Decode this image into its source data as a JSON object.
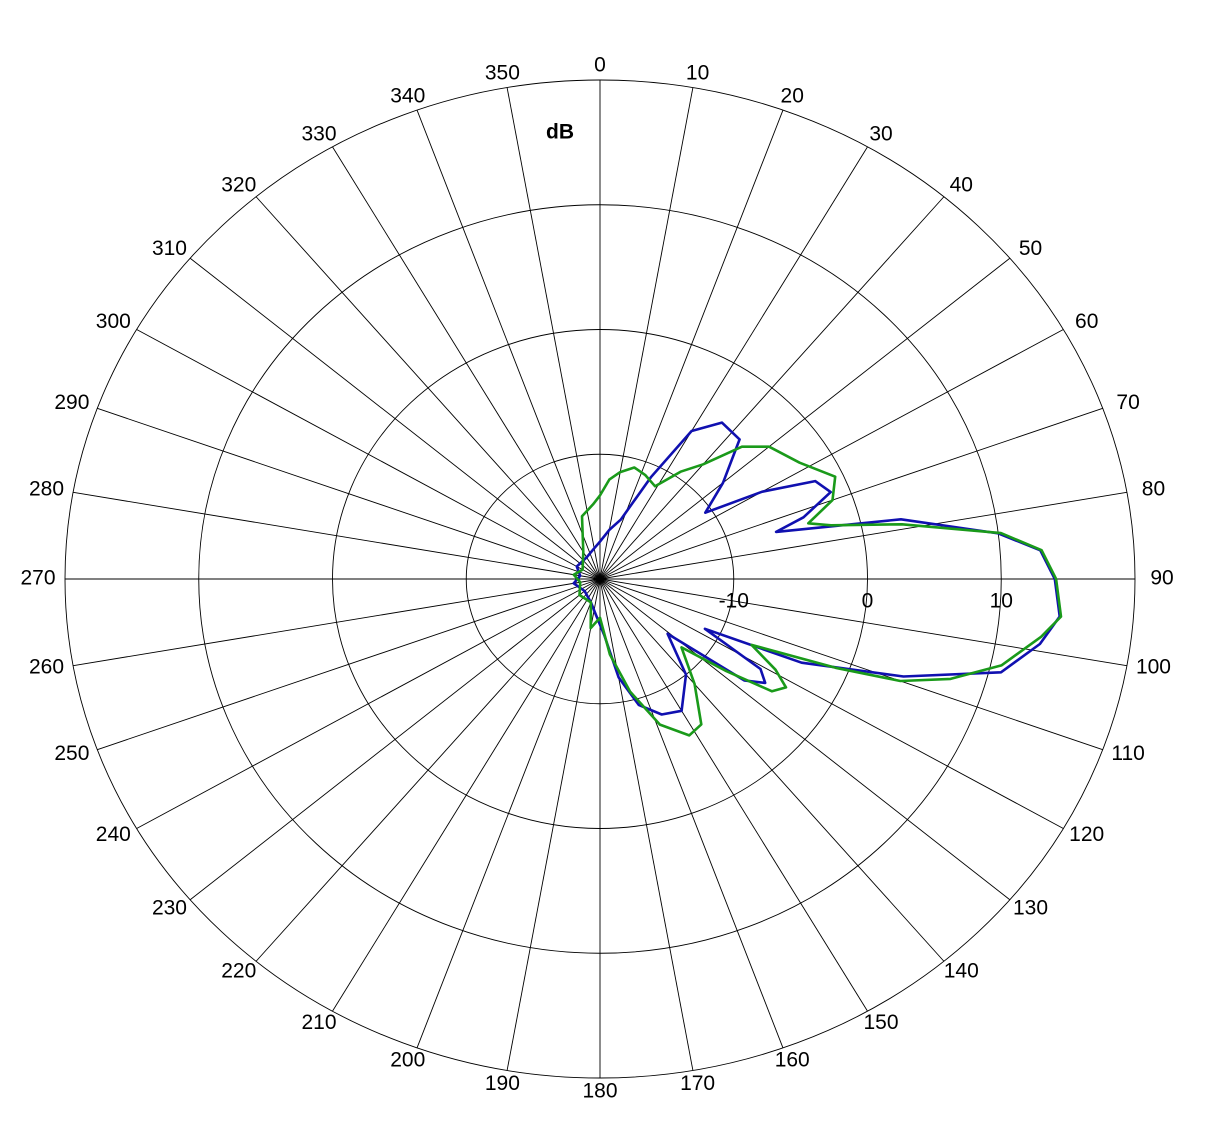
{
  "chart_data": {
    "type": "polar",
    "r_axis_label": "dB",
    "rlim": [
      -20,
      20
    ],
    "rticks": [
      -10,
      0,
      10
    ],
    "thetaticks": [
      0,
      10,
      20,
      30,
      40,
      50,
      60,
      70,
      80,
      90,
      100,
      110,
      120,
      130,
      140,
      150,
      160,
      170,
      180,
      190,
      200,
      210,
      220,
      230,
      240,
      250,
      260,
      270,
      280,
      290,
      300,
      310,
      320,
      330,
      340,
      350
    ],
    "direction": "clockwise",
    "zero_location": "top",
    "grid": true,
    "series": [
      {
        "color": "#1010b0",
        "theta": [
          0,
          10,
          18,
          25,
          30,
          36,
          43,
          50,
          56,
          60,
          64,
          68,
          72,
          74,
          78,
          83,
          86,
          90,
          95,
          99,
          104,
          109,
          114,
          117,
          121,
          124,
          127,
          131,
          140,
          150,
          157,
          164,
          170,
          176,
          185,
          200,
          230,
          260,
          280,
          300,
          330,
          350
        ],
        "values": [
          -17,
          -16,
          -15,
          -11,
          -6.3,
          -4.5,
          -4.7,
          -8,
          -10.5,
          -6,
          -2.1,
          -1.4,
          -4,
          -6.3,
          3,
          10,
          13,
          14,
          14.5,
          13.3,
          10.9,
          4,
          -3.5,
          -11.2,
          -6,
          -5.1,
          -6.5,
          -13.3,
          -10,
          -7.8,
          -8.2,
          -9.5,
          -12,
          -15.5,
          -17,
          -18,
          -18.5,
          -18,
          -18.5,
          -18,
          -18,
          -17.5
        ]
      },
      {
        "color": "#1a9a1a",
        "theta": [
          0,
          5,
          10,
          16,
          22,
          29,
          35,
          40,
          45,
          50,
          58,
          65,
          70,
          74,
          76,
          79,
          83,
          86,
          90,
          95,
          98,
          103,
          107,
          110,
          112,
          115,
          119,
          122,
          125,
          128,
          132,
          140,
          147,
          152,
          159,
          166,
          173,
          180,
          190,
          200,
          230,
          260,
          280,
          300,
          330,
          345,
          355
        ],
        "values": [
          -13.3,
          -12,
          -11.3,
          -10.7,
          -11,
          -11.5,
          -9.5,
          -8,
          -5,
          -3.5,
          -2.4,
          -0.6,
          -1.5,
          -3.8,
          -2.2,
          3,
          10.2,
          13.1,
          14.1,
          14.6,
          13.3,
          10.8,
          7.4,
          3.9,
          -1,
          -7.5,
          -5,
          -3.6,
          -4.3,
          -8,
          -11.8,
          -9,
          -6.1,
          -5.8,
          -7.5,
          -10.7,
          -13.9,
          -16.9,
          -16,
          -18,
          -18,
          -18.5,
          -18,
          -18.5,
          -17.5,
          -14.8,
          -14
        ]
      }
    ]
  }
}
